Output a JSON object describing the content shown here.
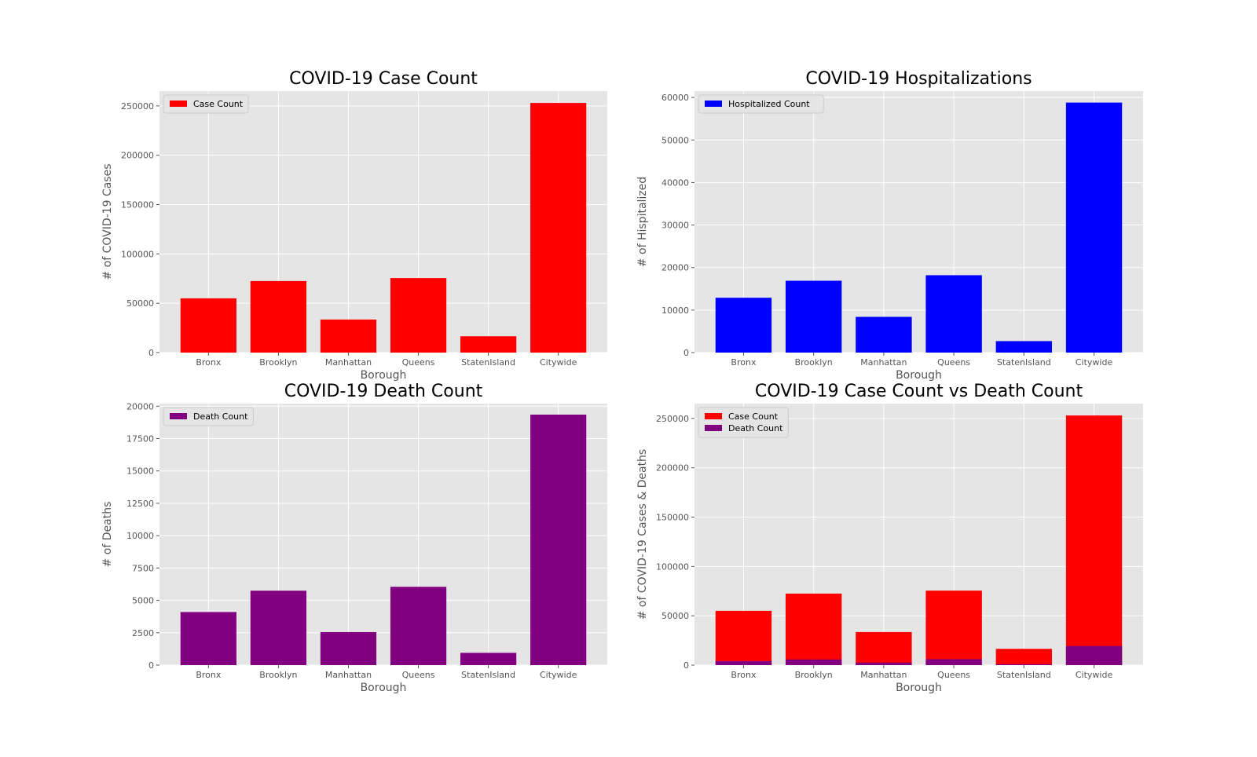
{
  "style": {
    "axes_bg": "#E5E5E5",
    "grid_color": "#FFFFFF",
    "text_color": "#555555",
    "legend_bg": "#E5E5E5",
    "legend_edge": "#CCCCCC"
  },
  "chart_data": [
    {
      "type": "bar",
      "title": "COVID-19 Case Count",
      "xlabel": "Borough",
      "ylabel": "# of COVID-19 Cases",
      "categories": [
        "Bronx",
        "Brooklyn",
        "Manhattan",
        "Queens",
        "StatenIsland",
        "Citywide"
      ],
      "ylim": [
        0,
        265000
      ],
      "yticks": [
        0,
        50000,
        100000,
        150000,
        200000,
        250000
      ],
      "grid": true,
      "legend": "top-left",
      "series": [
        {
          "name": "Case Count",
          "color": "#FF0000",
          "values": [
            55000,
            72500,
            33500,
            75500,
            16500,
            253000
          ]
        }
      ]
    },
    {
      "type": "bar",
      "title": "COVID-19 Hospitalizations",
      "xlabel": "Borough",
      "ylabel": "# of Hispitalized",
      "categories": [
        "Bronx",
        "Brooklyn",
        "Manhattan",
        "Queens",
        "StatenIsland",
        "Citywide"
      ],
      "ylim": [
        0,
        61500
      ],
      "yticks": [
        0,
        10000,
        20000,
        30000,
        40000,
        50000,
        60000
      ],
      "grid": true,
      "legend": "top-left",
      "series": [
        {
          "name": "Hospitalized Count",
          "color": "#0000FF",
          "values": [
            12900,
            16900,
            8400,
            18200,
            2700,
            58800
          ]
        }
      ]
    },
    {
      "type": "bar",
      "title": "COVID-19 Death Count",
      "xlabel": "Borough",
      "ylabel": "# of Deaths",
      "categories": [
        "Bronx",
        "Brooklyn",
        "Manhattan",
        "Queens",
        "StatenIsland",
        "Citywide"
      ],
      "ylim": [
        0,
        20200
      ],
      "yticks": [
        0,
        2500,
        5000,
        7500,
        10000,
        12500,
        15000,
        17500,
        20000
      ],
      "grid": true,
      "legend": "top-left",
      "series": [
        {
          "name": "Death Count",
          "color": "#800080",
          "values": [
            4100,
            5750,
            2550,
            6050,
            950,
            19350
          ]
        }
      ]
    },
    {
      "type": "bar",
      "title": "COVID-19 Case Count vs Death Count",
      "xlabel": "Borough",
      "ylabel": "# of COVID-19 Cases & Deaths",
      "categories": [
        "Bronx",
        "Brooklyn",
        "Manhattan",
        "Queens",
        "StatenIsland",
        "Citywide"
      ],
      "ylim": [
        0,
        265000
      ],
      "yticks": [
        0,
        50000,
        100000,
        150000,
        200000,
        250000
      ],
      "grid": true,
      "legend": "top-left",
      "overlay": true,
      "series": [
        {
          "name": "Case Count",
          "color": "#FF0000",
          "values": [
            55000,
            72500,
            33500,
            75500,
            16500,
            253000
          ]
        },
        {
          "name": "Death Count",
          "color": "#800080",
          "values": [
            4100,
            5750,
            2550,
            6050,
            950,
            19350
          ]
        }
      ]
    }
  ]
}
